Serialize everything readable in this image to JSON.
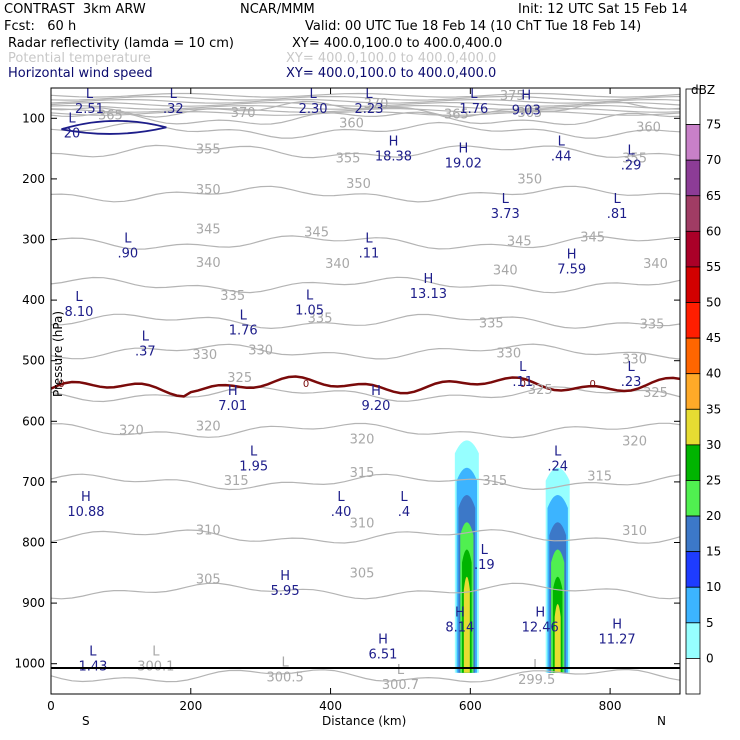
{
  "header": {
    "title_left": "CONTRAST  3km ARW",
    "title_mid": "NCAR/MMM",
    "init": "Init: 12 UTC Sat 15 Feb 14",
    "fcst": "Fcst:   60 h",
    "valid": "Valid: 00 UTC Tue 18 Feb 14 (10 ChT Tue 18 Feb 14)",
    "field1_name": "Radar reflectivity (lamda = 10 cm)",
    "field1_xy": "XY= 400.0,100.0 to 400.0,400.0",
    "field2_name": "Potential temperature",
    "field2_xy": "XY= 400.0,100.0 to 400.0,400.0",
    "field3_name": "Horizontal wind speed",
    "field3_xy": "XY= 400.0,100.0 to 400.0,400.0"
  },
  "chart_data": {
    "type": "cross-section",
    "xlabel": "Distance (km)",
    "ylabel": "Pressure (hPa)",
    "xlim": [
      0,
      900
    ],
    "ylim": [
      1050,
      50
    ],
    "xticks": [
      0,
      200,
      400,
      600,
      800
    ],
    "yticks": [
      100,
      200,
      300,
      400,
      500,
      600,
      700,
      800,
      900,
      1000
    ],
    "x_end_labels": {
      "left": "S",
      "right": "N"
    },
    "colorbar": {
      "unit": "dBZ",
      "levels": [
        0,
        5,
        10,
        15,
        20,
        25,
        30,
        35,
        40,
        45,
        50,
        55,
        60,
        65,
        70,
        75
      ],
      "colors": [
        "#ffffff",
        "#96ffff",
        "#3cb4ff",
        "#1e3cff",
        "#3c78c8",
        "#50f050",
        "#00b400",
        "#e6dc32",
        "#ffaa28",
        "#ff6600",
        "#ff1e00",
        "#d20000",
        "#aa0028",
        "#a03c64",
        "#8c3c96",
        "#c880c8"
      ]
    },
    "theta_contours": [
      {
        "value": 300,
        "p": 1020
      },
      {
        "value": 305,
        "p": 880
      },
      {
        "value": 310,
        "p": 790
      },
      {
        "value": 315,
        "p": 700
      },
      {
        "value": 320,
        "p": 615
      },
      {
        "value": 325,
        "p": 555
      },
      {
        "value": 330,
        "p": 485
      },
      {
        "value": 335,
        "p": 435
      },
      {
        "value": 340,
        "p": 375
      },
      {
        "value": 345,
        "p": 305
      },
      {
        "value": 350,
        "p": 225
      },
      {
        "value": 355,
        "p": 155
      },
      {
        "value": 360,
        "p": 120
      },
      {
        "value": 365,
        "p": 100
      },
      {
        "value": 370,
        "p": 85
      }
    ],
    "theta_labels": [
      {
        "text": "365",
        "x": 85,
        "p": 102
      },
      {
        "text": "370",
        "x": 275,
        "p": 98
      },
      {
        "text": "370",
        "x": 465,
        "p": 83
      },
      {
        "text": "375",
        "x": 660,
        "p": 70
      },
      {
        "text": "365",
        "x": 580,
        "p": 100
      },
      {
        "text": "365",
        "x": 685,
        "p": 98
      },
      {
        "text": "360",
        "x": 430,
        "p": 115
      },
      {
        "text": "360",
        "x": 855,
        "p": 122
      },
      {
        "text": "355",
        "x": 225,
        "p": 158
      },
      {
        "text": "355",
        "x": 425,
        "p": 173
      },
      {
        "text": "355",
        "x": 835,
        "p": 173
      },
      {
        "text": "350",
        "x": 225,
        "p": 225
      },
      {
        "text": "350",
        "x": 440,
        "p": 215
      },
      {
        "text": "350",
        "x": 685,
        "p": 208
      },
      {
        "text": "345",
        "x": 225,
        "p": 290
      },
      {
        "text": "345",
        "x": 380,
        "p": 295
      },
      {
        "text": "345",
        "x": 670,
        "p": 310
      },
      {
        "text": "345",
        "x": 775,
        "p": 303
      },
      {
        "text": "340",
        "x": 225,
        "p": 345
      },
      {
        "text": "340",
        "x": 410,
        "p": 347
      },
      {
        "text": "340",
        "x": 650,
        "p": 358
      },
      {
        "text": "340",
        "x": 865,
        "p": 347
      },
      {
        "text": "335",
        "x": 260,
        "p": 400
      },
      {
        "text": "335",
        "x": 385,
        "p": 437
      },
      {
        "text": "335",
        "x": 630,
        "p": 445
      },
      {
        "text": "335",
        "x": 860,
        "p": 447
      },
      {
        "text": "330",
        "x": 220,
        "p": 497
      },
      {
        "text": "330",
        "x": 300,
        "p": 490
      },
      {
        "text": "330",
        "x": 655,
        "p": 495
      },
      {
        "text": "330",
        "x": 835,
        "p": 505
      },
      {
        "text": "325",
        "x": 270,
        "p": 535
      },
      {
        "text": "325",
        "x": 700,
        "p": 555
      },
      {
        "text": "325",
        "x": 865,
        "p": 560
      },
      {
        "text": "320",
        "x": 115,
        "p": 622
      },
      {
        "text": "320",
        "x": 225,
        "p": 615
      },
      {
        "text": "320",
        "x": 445,
        "p": 637
      },
      {
        "text": "320",
        "x": 835,
        "p": 640
      },
      {
        "text": "315",
        "x": 265,
        "p": 705
      },
      {
        "text": "315",
        "x": 445,
        "p": 692
      },
      {
        "text": "315",
        "x": 635,
        "p": 705
      },
      {
        "text": "315",
        "x": 785,
        "p": 698
      },
      {
        "text": "310",
        "x": 225,
        "p": 787
      },
      {
        "text": "310",
        "x": 445,
        "p": 775
      },
      {
        "text": "310",
        "x": 835,
        "p": 788
      },
      {
        "text": "305",
        "x": 225,
        "p": 868
      },
      {
        "text": "305",
        "x": 445,
        "p": 858
      }
    ],
    "wind_labels": [
      {
        "t": "L",
        "v": "2.51",
        "x": 55,
        "p": 70
      },
      {
        "t": "L",
        "v": ".32",
        "x": 175,
        "p": 70
      },
      {
        "t": "L",
        "v": "2.30",
        "x": 375,
        "p": 70
      },
      {
        "t": "L",
        "v": "2.23",
        "x": 455,
        "p": 70
      },
      {
        "t": "L",
        "v": "1.76",
        "x": 605,
        "p": 70
      },
      {
        "t": "H",
        "v": "9.03",
        "x": 680,
        "p": 72
      },
      {
        "t": "L",
        "v": "20",
        "x": 30,
        "p": 110
      },
      {
        "t": "H",
        "v": "18.38",
        "x": 490,
        "p": 148
      },
      {
        "t": "H",
        "v": "19.02",
        "x": 590,
        "p": 160
      },
      {
        "t": "L",
        "v": ".44",
        "x": 730,
        "p": 148
      },
      {
        "t": "L",
        "v": ".29",
        "x": 830,
        "p": 163
      },
      {
        "t": "L",
        "v": "3.73",
        "x": 650,
        "p": 243
      },
      {
        "t": "L",
        "v": ".81",
        "x": 810,
        "p": 243
      },
      {
        "t": "L",
        "v": ".90",
        "x": 110,
        "p": 308
      },
      {
        "t": "L",
        "v": ".11",
        "x": 455,
        "p": 308
      },
      {
        "t": "H",
        "v": "7.59",
        "x": 745,
        "p": 335
      },
      {
        "t": "H",
        "v": "13.13",
        "x": 540,
        "p": 375
      },
      {
        "t": "L",
        "v": "8.10",
        "x": 40,
        "p": 405
      },
      {
        "t": "L",
        "v": "1.05",
        "x": 370,
        "p": 402
      },
      {
        "t": "L",
        "v": "1.76",
        "x": 275,
        "p": 435
      },
      {
        "t": "L",
        "v": ".37",
        "x": 135,
        "p": 470
      },
      {
        "t": "L",
        "v": ".11",
        "x": 675,
        "p": 520
      },
      {
        "t": "L",
        "v": ".23",
        "x": 830,
        "p": 520
      },
      {
        "t": "H",
        "v": "7.01",
        "x": 260,
        "p": 560
      },
      {
        "t": "H",
        "v": "9.20",
        "x": 465,
        "p": 560
      },
      {
        "t": "L",
        "v": "1.95",
        "x": 290,
        "p": 660
      },
      {
        "t": "L",
        "v": ".24",
        "x": 725,
        "p": 660
      },
      {
        "t": "H",
        "v": "10.88",
        "x": 50,
        "p": 735
      },
      {
        "t": "L",
        "v": ".40",
        "x": 415,
        "p": 735
      },
      {
        "t": "L",
        "v": ".4",
        "x": 505,
        "p": 735
      },
      {
        "t": "L",
        "v": ".19",
        "x": 620,
        "p": 822
      },
      {
        "t": "H",
        "v": "5.95",
        "x": 335,
        "p": 865
      },
      {
        "t": "H",
        "v": "8.14",
        "x": 585,
        "p": 925
      },
      {
        "t": "H",
        "v": "12.46",
        "x": 700,
        "p": 925
      },
      {
        "t": "H",
        "v": "11.27",
        "x": 810,
        "p": 945
      },
      {
        "t": "H",
        "v": "6.51",
        "x": 475,
        "p": 970
      },
      {
        "t": "L",
        "v": "1.43",
        "x": 60,
        "p": 990
      }
    ],
    "theta_surface_labels": [
      {
        "t": "L",
        "v": "300.1",
        "x": 150,
        "p": 990
      },
      {
        "t": "L",
        "v": "300.5",
        "x": 335,
        "p": 1008
      },
      {
        "t": "L",
        "v": "300.7",
        "x": 500,
        "p": 1020
      },
      {
        "t": "L",
        "v": "299.5",
        "x": 695,
        "p": 1012
      }
    ],
    "zero_contour_labels": [
      "0",
      "0",
      "0",
      "0"
    ],
    "reflectivity_cells": [
      {
        "x_center": 595,
        "top_p": 620,
        "max_dbz": 40
      },
      {
        "x_center": 725,
        "top_p": 665,
        "max_dbz": 38
      }
    ]
  }
}
